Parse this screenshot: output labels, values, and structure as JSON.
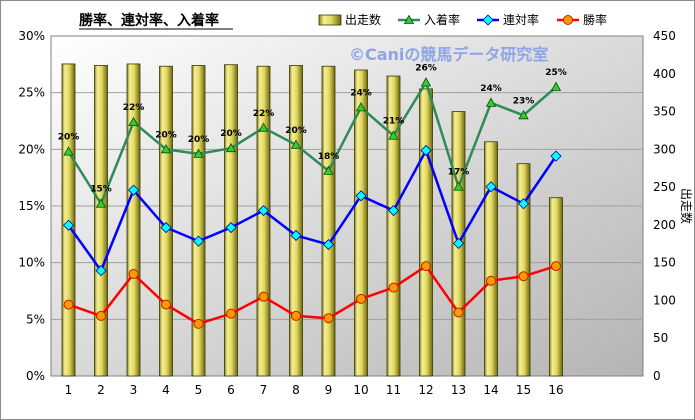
{
  "chart_data": {
    "type": "bar",
    "title": "勝率、連対率、入着率",
    "watermark": "©Caniの競馬データ研究室",
    "categories": [
      "1",
      "2",
      "3",
      "4",
      "5",
      "6",
      "7",
      "8",
      "9",
      "10",
      "11",
      "12",
      "13",
      "14",
      "15",
      "16"
    ],
    "y_left": {
      "ylim": [
        0,
        30
      ],
      "ticks": [
        "0%",
        "5%",
        "10%",
        "15%",
        "20%",
        "25%",
        "30%"
      ]
    },
    "y_right": {
      "label": "出走数",
      "ylim": [
        0,
        450
      ],
      "ticks": [
        "0",
        "50",
        "100",
        "150",
        "200",
        "250",
        "300",
        "350",
        "400",
        "450"
      ]
    },
    "grid": true,
    "legend_position": "top",
    "series": [
      {
        "name": "出走数",
        "kind": "bar",
        "axis": "right",
        "color": "#e8e070",
        "values": [
          413,
          411,
          413,
          410,
          411,
          412,
          410,
          411,
          410,
          405,
          397,
          380,
          350,
          310,
          281,
          236
        ]
      },
      {
        "name": "入着率",
        "kind": "line",
        "axis": "left",
        "color": "#2e8b57",
        "marker": "triangle",
        "values": [
          19.8,
          15.2,
          22.4,
          20.0,
          19.6,
          20.1,
          21.9,
          20.4,
          18.1,
          23.7,
          21.2,
          25.9,
          16.7,
          24.1,
          23.0,
          25.5
        ],
        "labels": [
          "20%",
          "15%",
          "22%",
          "20%",
          "20%",
          "20%",
          "22%",
          "20%",
          "18%",
          "24%",
          "21%",
          "26%",
          "17%",
          "24%",
          "23%",
          "25%"
        ]
      },
      {
        "name": "連対率",
        "kind": "line",
        "axis": "left",
        "color": "#0000ff",
        "marker": "diamond",
        "values": [
          13.3,
          9.3,
          16.4,
          13.1,
          11.9,
          13.1,
          14.6,
          12.4,
          11.6,
          15.9,
          14.6,
          19.9,
          11.7,
          16.7,
          15.2,
          19.4
        ]
      },
      {
        "name": "勝率",
        "kind": "line",
        "axis": "left",
        "color": "#ff0000",
        "marker": "circle",
        "values": [
          6.3,
          5.3,
          9.0,
          6.3,
          4.6,
          5.5,
          7.0,
          5.3,
          5.1,
          6.8,
          7.8,
          9.7,
          5.6,
          8.4,
          8.8,
          9.7
        ]
      }
    ]
  }
}
